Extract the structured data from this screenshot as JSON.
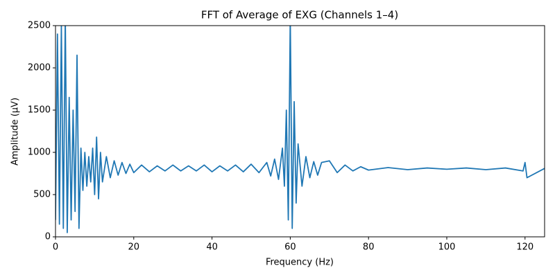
{
  "chart_data": {
    "type": "line",
    "title": "FFT of Average of EXG (Channels 1–4)",
    "x_label": "Frequency (Hz)",
    "y_label": "Amplitude (µV)",
    "color": "#1f77b4",
    "x": [
      0,
      0.5,
      1,
      1.5,
      2,
      2.5,
      3,
      3.5,
      4,
      4.5,
      5,
      5.5,
      6,
      6.5,
      7,
      7.5,
      8,
      8.5,
      9,
      9.5,
      10,
      10.5,
      11,
      11.5,
      12,
      13,
      14,
      15,
      16,
      17,
      18,
      19,
      20,
      22,
      24,
      26,
      28,
      30,
      32,
      34,
      36,
      38,
      40,
      42,
      44,
      46,
      48,
      50,
      52,
      54,
      55,
      56,
      57,
      58,
      58.5,
      59,
      59.5,
      60,
      60.5,
      61,
      61.5,
      62,
      63,
      64,
      65,
      66,
      67,
      68,
      70,
      72,
      74,
      76,
      78,
      80,
      85,
      90,
      95,
      100,
      105,
      110,
      115,
      119.5,
      120,
      120.5,
      125
    ],
    "values": [
      200,
      2400,
      150,
      2500,
      100,
      2600,
      50,
      1650,
      200,
      1500,
      300,
      2150,
      100,
      1050,
      550,
      1000,
      600,
      950,
      650,
      1050,
      500,
      1180,
      450,
      1000,
      650,
      950,
      700,
      900,
      730,
      880,
      750,
      860,
      760,
      850,
      770,
      840,
      780,
      850,
      780,
      840,
      780,
      850,
      770,
      840,
      780,
      850,
      770,
      860,
      760,
      880,
      720,
      920,
      680,
      1050,
      600,
      1500,
      200,
      2600,
      100,
      1600,
      400,
      1100,
      600,
      950,
      700,
      890,
      730,
      880,
      900,
      760,
      850,
      780,
      830,
      790,
      820,
      795,
      815,
      800,
      815,
      795,
      815,
      780,
      880,
      700,
      810
    ],
    "xlim": [
      0,
      125
    ],
    "ylim": [
      0,
      2500
    ],
    "xticks": [
      0,
      20,
      40,
      60,
      80,
      100,
      120
    ],
    "yticks": [
      0,
      500,
      1000,
      1500,
      2000,
      2500
    ]
  }
}
